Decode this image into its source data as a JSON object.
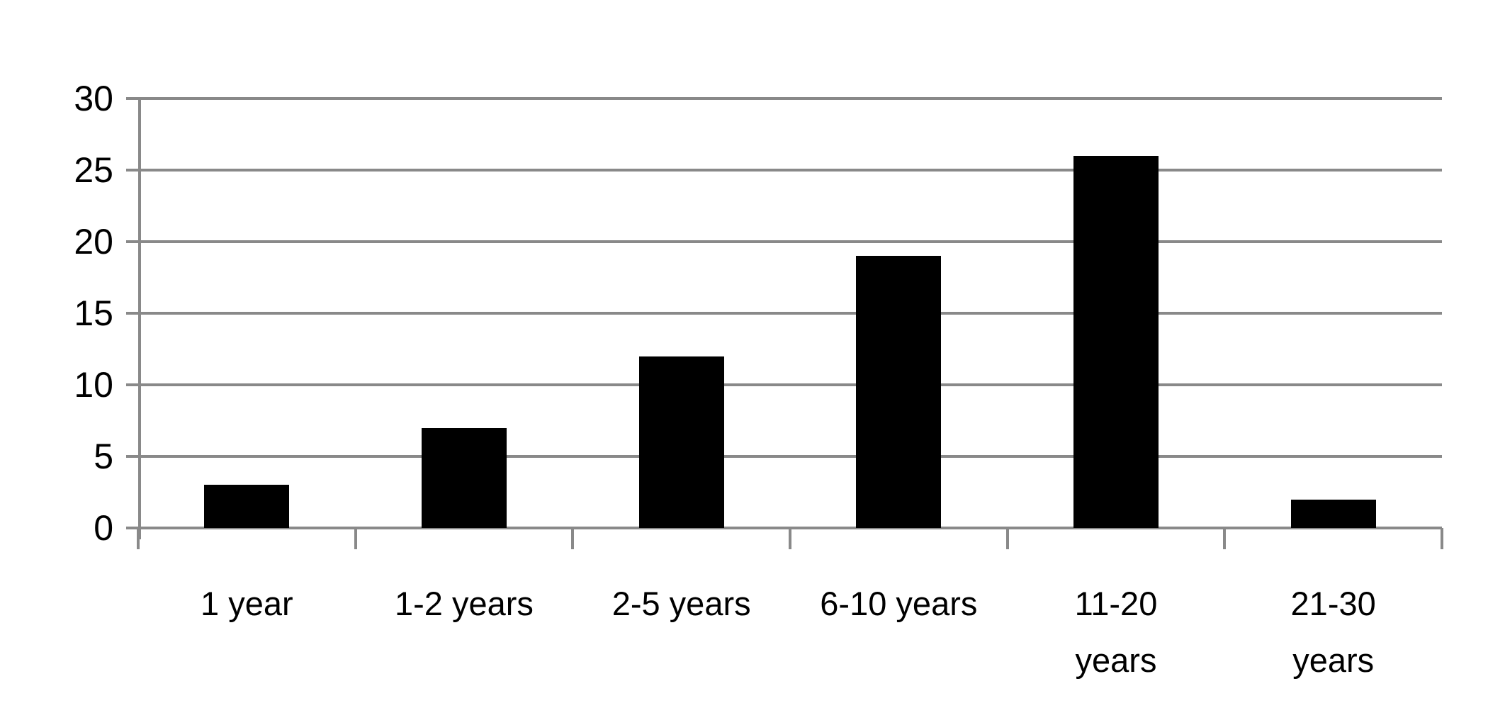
{
  "chart_data": {
    "type": "bar",
    "title": "",
    "xlabel": "",
    "ylabel": "",
    "categories": [
      "1 year",
      "1-2 years",
      "2-5 years",
      "6-10 years",
      "11-20 years",
      "21-30 years"
    ],
    "category_label_lines": [
      [
        "1 year"
      ],
      [
        "1-2 years"
      ],
      [
        "2-5 years"
      ],
      [
        "6-10 years"
      ],
      [
        "11-20",
        "years"
      ],
      [
        "21-30",
        "years"
      ]
    ],
    "values": [
      3,
      7,
      12,
      19,
      26,
      2
    ],
    "ylim": [
      0,
      30
    ],
    "yticks": [
      0,
      5,
      10,
      15,
      20,
      25,
      30
    ],
    "grid": "horizontal",
    "legend": "none",
    "colors": {
      "bar": "#000000",
      "gridline": "#898989",
      "axis": "#898989",
      "text": "#000000",
      "background": "#ffffff"
    }
  }
}
